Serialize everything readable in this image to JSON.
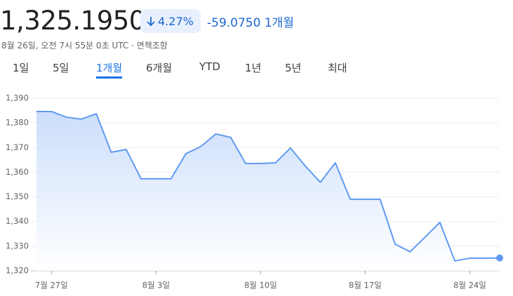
{
  "header": {
    "price": "1,325.1950",
    "change_percent": "4.27%",
    "change": "-59.0750",
    "period": "1개월",
    "subtitle": "8월 26일, 오전 7시 55분 0초 UTC · 면책조항"
  },
  "tabs": [
    "1일",
    "5일",
    "1개월",
    "6개월",
    "YTD",
    "1년",
    "5년",
    "최대"
  ],
  "selected_tab": 2,
  "chart_data": {
    "type": "area",
    "x": [
      "07-26",
      "07-27",
      "07-28",
      "07-29",
      "07-30",
      "07-31",
      "08-01",
      "08-02",
      "08-03",
      "08-04",
      "08-05",
      "08-06",
      "08-07",
      "08-08",
      "08-09",
      "08-10",
      "08-11",
      "08-12",
      "08-13",
      "08-14",
      "08-15",
      "08-16",
      "08-17",
      "08-18",
      "08-19",
      "08-20",
      "08-21",
      "08-22",
      "08-23",
      "08-24",
      "08-25",
      "08-26"
    ],
    "series": [
      {
        "color": "#5f9bf0",
        "values": [
          1384.6,
          1384.6,
          1382.3,
          1381.5,
          1383.7,
          1368.1,
          1369.2,
          1357.3,
          1357.3,
          1357.3,
          1367.5,
          1370.4,
          1375.5,
          1374.1,
          1363.5,
          1363.5,
          1363.8,
          1369.8,
          1362.4,
          1355.9,
          1363.8,
          1349.0,
          1349.0,
          1349.0,
          1330.8,
          1327.7,
          1333.6,
          1339.6,
          1324.0,
          1325.1,
          1325.1,
          1325.195
        ]
      }
    ],
    "xlim": [
      "07-26",
      "08-26"
    ],
    "xticks": [
      {
        "value": "07-27",
        "label": "7월 27일"
      },
      {
        "value": "08-03",
        "label": "8월 3일"
      },
      {
        "value": "08-10",
        "label": "8월 10일"
      },
      {
        "value": "08-17",
        "label": "8월 17일"
      },
      {
        "value": "08-24",
        "label": "8월 24일"
      }
    ],
    "ylim": [
      1320,
      1390
    ],
    "yticks": [
      {
        "value": 1320,
        "label": "1,320"
      },
      {
        "value": 1330,
        "label": "1,330"
      },
      {
        "value": 1340,
        "label": "1,340"
      },
      {
        "value": 1350,
        "label": "1,350"
      },
      {
        "value": 1360,
        "label": "1,360"
      },
      {
        "value": 1370,
        "label": "1,370"
      },
      {
        "value": 1380,
        "label": "1,380"
      },
      {
        "value": 1390,
        "label": "1,390"
      }
    ],
    "grid": true
  }
}
